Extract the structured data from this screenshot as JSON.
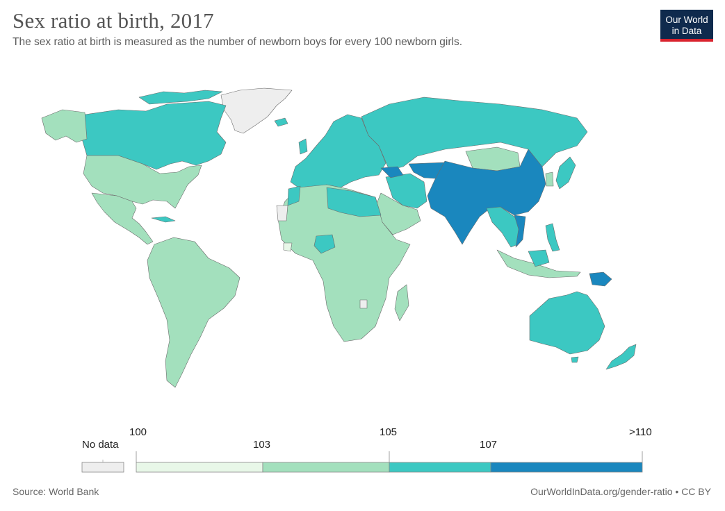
{
  "header": {
    "title": "Sex ratio at birth, 2017",
    "subtitle": "The sex ratio at birth is measured as the number of newborn boys for every 100 newborn girls."
  },
  "logo": {
    "line1": "Our World",
    "line2": "in Data"
  },
  "legend": {
    "no_data_label": "No data",
    "no_data_color": "#eeeeee",
    "ticks": [
      "100",
      "103",
      "105",
      "107",
      ">110"
    ],
    "bins": [
      {
        "from": "100",
        "to": "103",
        "color": "#e8f7e8"
      },
      {
        "from": "103",
        "to": "105",
        "color": "#a3e0bd"
      },
      {
        "from": "105",
        "to": "107",
        "color": "#3cc8c2"
      },
      {
        "from": "107",
        "to": ">110",
        "color": "#1a87be"
      }
    ]
  },
  "map": {
    "country_groups": {
      "no_data": [
        "Greenland",
        "Western Sahara",
        "Eswatini"
      ],
      "100_103": [
        "Liberia",
        "Sierra Leone"
      ],
      "103_105": [
        "United States",
        "Mexico",
        "South America",
        "Africa",
        "Saudi Arabia",
        "Mongolia",
        "Greenland coast"
      ],
      "105_107": [
        "Canada",
        "Russia",
        "Europe",
        "Australia",
        "Egypt",
        "Libya",
        "Iran",
        "Nigeria",
        "Japan",
        "New Zealand",
        "Southeast Asia"
      ],
      "107_110_plus": [
        "China",
        "India",
        "Pakistan",
        "Azerbaijan",
        "Armenia",
        "Vietnam",
        "Papua New Guinea"
      ]
    }
  },
  "footer": {
    "source": "Source: World Bank",
    "url": "OurWorldInData.org/gender-ratio • CC BY"
  }
}
